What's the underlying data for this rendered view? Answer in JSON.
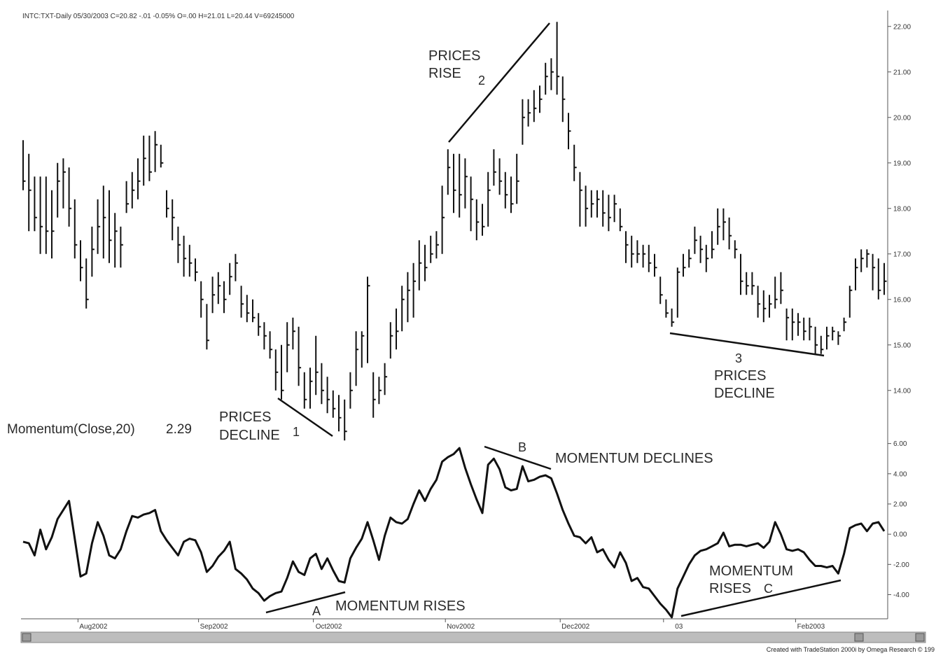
{
  "chart_data": [
    {
      "type": "ohlc",
      "title": "INTC:TXT-Daily   05/30/2003   C=20.82  -.01  -0.05%   O=.00   H=21.01   L=20.44   V=69245000",
      "color": "#111111",
      "high": [
        19.5,
        19.2,
        18.7,
        18.7,
        18.7,
        18.4,
        19.0,
        19.1,
        18.9,
        18.2,
        17.3,
        16.9,
        17.6,
        18.2,
        18.5,
        18.4,
        17.9,
        17.6,
        18.6,
        18.8,
        19.1,
        19.6,
        19.6,
        19.7,
        19.4,
        18.4,
        18.2,
        17.6,
        17.4,
        17.2,
        16.9,
        16.4,
        15.9,
        16.5,
        16.6,
        16.4,
        16.8,
        17.0,
        16.3,
        16.1,
        16.0,
        15.7,
        15.5,
        15.3,
        14.9,
        15.0,
        15.5,
        15.6,
        15.4,
        14.4,
        14.5,
        15.2,
        14.6,
        14.3,
        14.0,
        13.9,
        13.8,
        14.4,
        15.3,
        15.3,
        16.5,
        14.4,
        14.3,
        14.6,
        15.5,
        15.8,
        16.3,
        16.6,
        16.8,
        17.3,
        17.2,
        17.4,
        17.5,
        18.5,
        19.3,
        19.2,
        19.2,
        19.1,
        18.7,
        18.2,
        18.1,
        18.8,
        19.3,
        19.1,
        18.8,
        18.7,
        19.2,
        20.4,
        20.4,
        20.6,
        20.7,
        21.2,
        21.3,
        22.1,
        20.9,
        20.1,
        19.4,
        18.8,
        18.5,
        18.4,
        18.4,
        18.4,
        18.3,
        18.3,
        18.0,
        17.5,
        17.4,
        17.3,
        17.2,
        17.2,
        17.0,
        16.5,
        16.0,
        15.8,
        16.7,
        17.0,
        17.1,
        17.6,
        17.4,
        17.2,
        17.5,
        18.0,
        18.0,
        17.8,
        17.3,
        17.0,
        16.6,
        16.6,
        16.3,
        16.2,
        16.1,
        16.5,
        16.6,
        15.8,
        15.8,
        15.7,
        15.6,
        15.6,
        15.4,
        15.2,
        15.4,
        15.4,
        15.3,
        15.6,
        16.3,
        16.9,
        17.1,
        17.1,
        17.0,
        16.9,
        16.8
      ],
      "low": [
        18.4,
        17.5,
        17.5,
        17.0,
        17.0,
        16.9,
        17.8,
        18.0,
        17.6,
        16.9,
        16.4,
        15.8,
        16.5,
        17.0,
        16.9,
        16.8,
        16.7,
        16.7,
        17.9,
        18.0,
        18.2,
        18.5,
        18.6,
        18.8,
        18.9,
        17.8,
        17.3,
        16.8,
        16.5,
        16.5,
        16.4,
        15.6,
        14.9,
        15.7,
        15.9,
        15.7,
        16.1,
        16.4,
        15.6,
        15.5,
        15.5,
        15.2,
        14.9,
        14.7,
        14.0,
        13.8,
        14.4,
        14.9,
        14.1,
        13.6,
        13.6,
        13.9,
        13.7,
        13.5,
        13.4,
        13.1,
        12.9,
        13.6,
        14.1,
        14.5,
        14.6,
        13.4,
        13.7,
        13.9,
        14.7,
        14.9,
        15.3,
        15.5,
        15.6,
        16.2,
        16.4,
        16.8,
        16.9,
        17.0,
        18.3,
        17.9,
        17.8,
        18.0,
        17.5,
        17.3,
        17.4,
        17.6,
        18.5,
        18.3,
        18.0,
        17.9,
        18.1,
        19.4,
        19.8,
        19.9,
        20.1,
        20.5,
        20.6,
        20.5,
        19.9,
        19.3,
        18.6,
        17.6,
        17.6,
        17.8,
        17.8,
        17.6,
        17.5,
        17.7,
        17.5,
        16.8,
        16.7,
        16.8,
        16.7,
        16.6,
        16.5,
        15.9,
        15.6,
        15.4,
        15.6,
        16.5,
        16.7,
        17.0,
        16.8,
        16.6,
        16.9,
        17.2,
        17.3,
        17.1,
        16.9,
        16.1,
        16.1,
        16.1,
        15.6,
        15.5,
        15.6,
        15.8,
        15.9,
        15.1,
        15.1,
        15.2,
        15.1,
        15.1,
        14.8,
        14.8,
        14.9,
        15.1,
        15.0,
        15.3,
        15.6,
        16.2,
        16.6,
        16.7,
        16.2,
        16.0,
        16.1
      ],
      "close": [
        18.6,
        18.4,
        17.8,
        17.6,
        17.5,
        17.5,
        18.6,
        18.8,
        18.0,
        17.2,
        16.7,
        16.0,
        17.1,
        17.6,
        17.8,
        17.3,
        17.5,
        17.2,
        18.1,
        18.4,
        18.6,
        19.1,
        18.8,
        19.4,
        19.0,
        18.0,
        17.8,
        17.2,
        16.9,
        16.8,
        16.6,
        16.0,
        15.1,
        16.1,
        16.3,
        16.0,
        16.5,
        16.8,
        15.9,
        15.7,
        15.6,
        15.4,
        15.2,
        14.9,
        14.4,
        14.0,
        15.0,
        15.3,
        14.5,
        13.8,
        14.2,
        14.4,
        14.0,
        13.8,
        13.6,
        13.4,
        13.1,
        14.0,
        14.9,
        15.2,
        16.3,
        13.8,
        14.0,
        14.3,
        15.2,
        15.3,
        16.0,
        16.2,
        16.4,
        16.8,
        16.7,
        17.0,
        17.2,
        17.8,
        18.9,
        18.4,
        18.3,
        18.7,
        18.2,
        17.7,
        17.6,
        18.4,
        18.8,
        18.6,
        18.3,
        18.1,
        18.6,
        20.0,
        20.1,
        20.2,
        20.4,
        20.9,
        21.0,
        20.9,
        20.4,
        19.7,
        18.9,
        18.4,
        18.0,
        18.1,
        18.2,
        17.9,
        17.8,
        18.1,
        17.6,
        17.2,
        17.0,
        17.0,
        17.0,
        16.8,
        16.7,
        16.1,
        15.7,
        15.5,
        16.6,
        16.7,
        16.9,
        17.3,
        17.1,
        16.9,
        17.1,
        17.6,
        17.7,
        17.4,
        17.1,
        16.4,
        16.3,
        16.3,
        15.9,
        15.8,
        15.9,
        16.0,
        16.2,
        15.6,
        15.5,
        15.5,
        15.3,
        15.4,
        15.0,
        14.9,
        15.2,
        15.3,
        15.2,
        15.5,
        16.2,
        16.7,
        16.9,
        17.0,
        16.7,
        16.2,
        16.4
      ],
      "ylim": [
        12.95,
        22.35
      ],
      "yticks": [
        {
          "value": 14,
          "label": "14.00"
        },
        {
          "value": 15,
          "label": "15.00"
        },
        {
          "value": 16,
          "label": "16.00"
        },
        {
          "value": 17,
          "label": "17.00"
        },
        {
          "value": 18,
          "label": "18.00"
        },
        {
          "value": 19,
          "label": "19.00"
        },
        {
          "value": 20,
          "label": "20.00"
        },
        {
          "value": 21,
          "label": "21.00"
        },
        {
          "value": 22,
          "label": "22.00"
        }
      ],
      "annotations": [
        "PRICES",
        "DECLINE",
        "1",
        "PRICES",
        "RISE",
        "2",
        "3",
        "PRICES",
        "DECLINE"
      ]
    },
    {
      "type": "line",
      "title": "Momentum(Close,20)",
      "current_value": 2.29,
      "color": "#111111",
      "categories": [
        null,
        null,
        null,
        null,
        null,
        null,
        null,
        null,
        null,
        null,
        null,
        null,
        "Aug2002",
        null,
        null,
        null,
        null,
        null,
        null,
        null,
        null,
        null,
        null,
        null,
        null,
        null,
        null,
        null,
        null,
        null,
        null,
        null,
        null,
        "Sep2002",
        null,
        null,
        null,
        null,
        null,
        null,
        null,
        null,
        null,
        null,
        null,
        null,
        null,
        null,
        null,
        null,
        null,
        null,
        null,
        "Oct2002",
        null,
        null,
        null,
        null,
        null,
        null,
        null,
        null,
        null,
        null,
        null,
        null,
        null,
        null,
        null,
        null,
        null,
        null,
        null,
        null,
        null,
        null,
        "Nov2002",
        null,
        null,
        null,
        null,
        null,
        null,
        null,
        null,
        null,
        null,
        null,
        null,
        null,
        null,
        null,
        null,
        null,
        null,
        null,
        "Dec2002",
        null,
        null,
        null,
        null,
        null,
        null,
        null,
        null,
        null,
        null,
        null,
        null,
        null,
        null,
        null,
        null,
        null,
        "03",
        null,
        null,
        null,
        null,
        null,
        null,
        null,
        null,
        null,
        null,
        null,
        null,
        null,
        null,
        null,
        null,
        null,
        null,
        null,
        null,
        null,
        null,
        "Feb2003",
        null,
        null,
        null,
        null,
        null,
        null,
        null,
        null,
        null,
        null,
        null,
        null,
        null
      ],
      "values": [
        -0.5,
        -0.6,
        -1.4,
        0.3,
        -1.0,
        -0.2,
        1.0,
        1.6,
        2.2,
        -0.3,
        -2.8,
        -2.6,
        -0.6,
        0.8,
        -0.1,
        -1.4,
        -1.6,
        -1.0,
        0.2,
        1.2,
        1.1,
        1.3,
        1.4,
        1.6,
        0.2,
        -0.4,
        -0.9,
        -1.4,
        -0.5,
        -0.3,
        -0.4,
        -1.2,
        -2.5,
        -2.1,
        -1.5,
        -1.1,
        -0.5,
        -2.3,
        -2.6,
        -3.0,
        -3.6,
        -3.9,
        -4.4,
        -4.1,
        -3.9,
        -3.8,
        -2.9,
        -1.8,
        -2.5,
        -2.7,
        -1.6,
        -1.3,
        -2.3,
        -1.6,
        -2.4,
        -3.1,
        -3.2,
        -1.6,
        -0.9,
        -0.3,
        0.8,
        -0.4,
        -1.7,
        -0.1,
        1.1,
        0.8,
        0.7,
        1.0,
        2.0,
        2.9,
        2.2,
        3.0,
        3.6,
        4.8,
        5.1,
        5.3,
        5.7,
        4.4,
        3.3,
        2.3,
        1.4,
        4.6,
        5.0,
        4.3,
        3.1,
        2.9,
        3.0,
        4.5,
        3.5,
        3.6,
        3.8,
        3.9,
        3.7,
        2.7,
        1.6,
        0.7,
        -0.1,
        -0.2,
        -0.6,
        -0.2,
        -1.2,
        -1.0,
        -1.7,
        -2.2,
        -1.2,
        -1.9,
        -3.1,
        -2.9,
        -3.5,
        -3.6,
        -4.1,
        -4.6,
        -5.0,
        -5.5,
        -3.6,
        -2.8,
        -2.0,
        -1.4,
        -1.1,
        -1.0,
        -0.8,
        -0.6,
        0.1,
        -0.8,
        -0.7,
        -0.7,
        -0.8,
        -0.7,
        -0.6,
        -0.9,
        -0.5,
        0.8,
        0.0,
        -1.0,
        -1.1,
        -1.0,
        -1.2,
        -1.7,
        -2.1,
        -2.1,
        -2.2,
        -2.1,
        -2.6,
        -1.3,
        0.4,
        0.6,
        0.7,
        0.2,
        0.7,
        0.8,
        0.2
      ],
      "ylim": [
        -5.6,
        6.4
      ],
      "yticks": [
        {
          "value": 6,
          "label": "6.00"
        },
        {
          "value": 4,
          "label": "4.00"
        },
        {
          "value": 2,
          "label": "2.00"
        },
        {
          "value": 0,
          "label": "0.00"
        },
        {
          "value": -2,
          "label": "-2.00"
        },
        {
          "value": -4,
          "label": "-4.00"
        }
      ],
      "annotations": [
        "B",
        "MOMENTUM DECLINES",
        "A",
        "MOMENTUM RISES",
        "MOMENTUM",
        "RISES",
        "C"
      ]
    }
  ],
  "footer": "Created with TradeStation 2000i by Omega Research © 199"
}
